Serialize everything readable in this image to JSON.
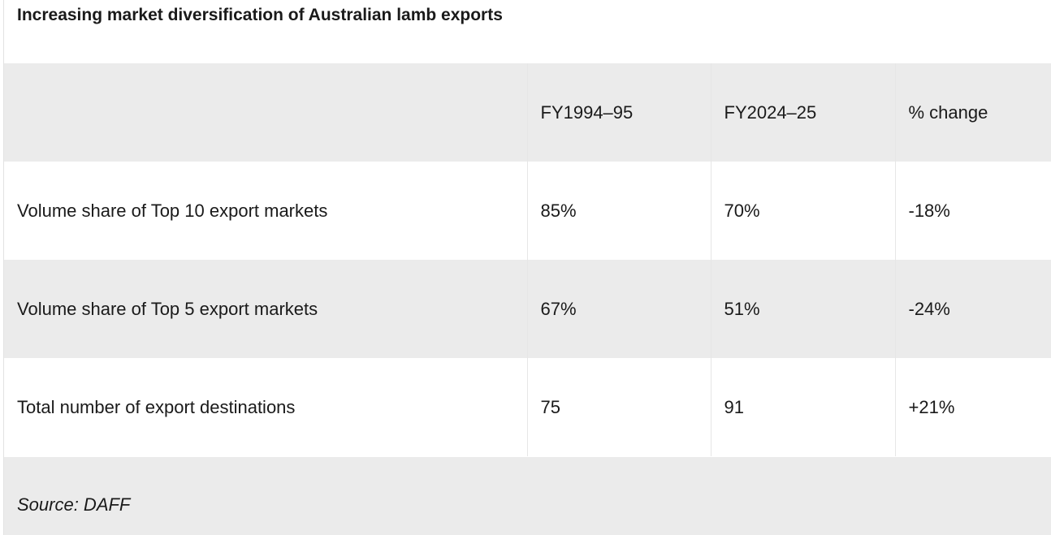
{
  "title": "Increasing market diversification of Australian lamb exports",
  "table": {
    "headers": [
      "",
      "FY1994–95",
      "FY2024–25",
      "% change"
    ],
    "rows": [
      [
        "Volume share of Top 10 export markets",
        "85%",
        "70%",
        "-18%"
      ],
      [
        "Volume share of Top 5 export markets",
        "67%",
        "51%",
        "-24%"
      ],
      [
        "Total number of export destinations",
        "75",
        "91",
        "+21%"
      ]
    ]
  },
  "source": "Source: DAFF",
  "colors": {
    "shaded_row": "#ebebeb",
    "text": "#1a1a1a"
  }
}
